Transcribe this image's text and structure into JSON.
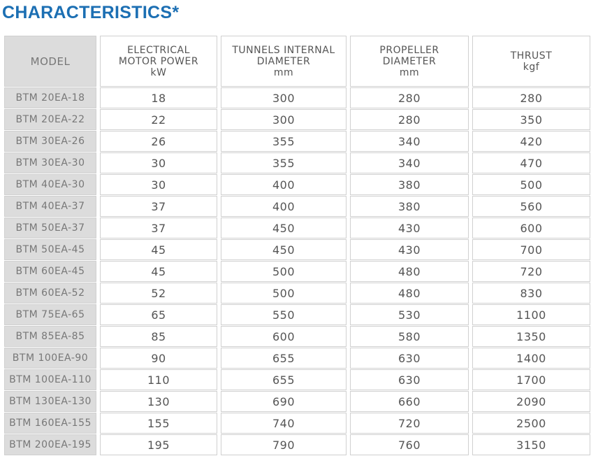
{
  "title": "CHARACTERISTICS*",
  "headers": [
    {
      "l1": "MODEL",
      "l2": "",
      "l3": ""
    },
    {
      "l1": "ELECTRICAL",
      "l2": "MOTOR POWER",
      "l3": "kW"
    },
    {
      "l1": "TUNNELS INTERNAL",
      "l2": "DIAMETER",
      "l3": "mm"
    },
    {
      "l1": "PROPELLER",
      "l2": "DIAMETER",
      "l3": "mm"
    },
    {
      "l1": "THRUST",
      "l2": "kgf",
      "l3": ""
    }
  ],
  "rows": [
    [
      "BTM 20EA-18",
      "18",
      "300",
      "280",
      "280"
    ],
    [
      "BTM 20EA-22",
      "22",
      "300",
      "280",
      "350"
    ],
    [
      "BTM 30EA-26",
      "26",
      "355",
      "340",
      "420"
    ],
    [
      "BTM 30EA-30",
      "30",
      "355",
      "340",
      "470"
    ],
    [
      "BTM 40EA-30",
      "30",
      "400",
      "380",
      "500"
    ],
    [
      "BTM 40EA-37",
      "37",
      "400",
      "380",
      "560"
    ],
    [
      "BTM 50EA-37",
      "37",
      "450",
      "430",
      "600"
    ],
    [
      "BTM 50EA-45",
      "45",
      "450",
      "430",
      "700"
    ],
    [
      "BTM 60EA-45",
      "45",
      "500",
      "480",
      "720"
    ],
    [
      "BTM 60EA-52",
      "52",
      "500",
      "480",
      "830"
    ],
    [
      "BTM 75EA-65",
      "65",
      "550",
      "530",
      "1100"
    ],
    [
      "BTM 85EA-85",
      "85",
      "600",
      "580",
      "1350"
    ],
    [
      "BTM 100EA-90",
      "90",
      "655",
      "630",
      "1400"
    ],
    [
      "BTM 100EA-110",
      "110",
      "655",
      "630",
      "1700"
    ],
    [
      "BTM 130EA-130",
      "130",
      "690",
      "660",
      "2090"
    ],
    [
      "BTM 160EA-155",
      "155",
      "740",
      "720",
      "2500"
    ],
    [
      "BTM 200EA-195",
      "195",
      "790",
      "760",
      "3150"
    ]
  ],
  "colors": {
    "title": "#1c6fb3",
    "model_bg": "#dcdcdc",
    "border": "#d0d0d0"
  }
}
